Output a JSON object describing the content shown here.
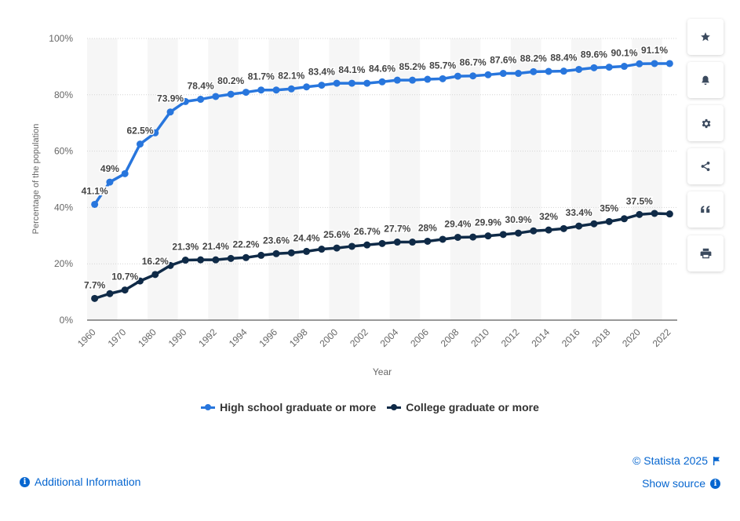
{
  "chart_data": {
    "type": "line",
    "xlabel": "Year",
    "ylabel": "Percentage of the population",
    "ylim": [
      0,
      100
    ],
    "yticks": [
      "0%",
      "20%",
      "40%",
      "60%",
      "80%",
      "100%"
    ],
    "xticks": [
      "1960",
      "1970",
      "1980",
      "1990",
      "1992",
      "1994",
      "1996",
      "1998",
      "2000",
      "2002",
      "2004",
      "2006",
      "2008",
      "2010",
      "2012",
      "2014",
      "2016",
      "2018",
      "2020",
      "2022"
    ],
    "x": [
      "1960",
      "1965",
      "1970",
      "1975",
      "1980",
      "1985",
      "1990",
      "1991",
      "1992",
      "1993",
      "1994",
      "1995",
      "1996",
      "1997",
      "1998",
      "1999",
      "2000",
      "2001",
      "2002",
      "2003",
      "2004",
      "2005",
      "2006",
      "2007",
      "2008",
      "2009",
      "2010",
      "2011",
      "2012",
      "2013",
      "2014",
      "2015",
      "2016",
      "2017",
      "2018",
      "2019",
      "2020",
      "2021",
      "2022"
    ],
    "series": [
      {
        "name": "High school graduate or more",
        "color": "#2876dd",
        "values": [
          41.1,
          49,
          52,
          62.5,
          66.5,
          73.9,
          77.6,
          78.4,
          79.4,
          80.2,
          80.9,
          81.7,
          81.7,
          82.1,
          82.8,
          83.4,
          84.1,
          84.1,
          84.1,
          84.6,
          85.2,
          85.2,
          85.5,
          85.7,
          86.6,
          86.7,
          87.1,
          87.6,
          87.6,
          88.2,
          88.3,
          88.4,
          89,
          89.6,
          89.8,
          90.1,
          91,
          91.1,
          91.1
        ],
        "labels": {
          "1960": "41.1%",
          "1965": "49%",
          "1975": "62.5%",
          "1985": "73.9%",
          "1991": "78.4%",
          "1993": "80.2%",
          "1995": "81.7%",
          "1997": "82.1%",
          "1999": "83.4%",
          "2001": "84.1%",
          "2003": "84.6%",
          "2005": "85.2%",
          "2007": "85.7%",
          "2009": "86.7%",
          "2011": "87.6%",
          "2013": "88.2%",
          "2015": "88.4%",
          "2017": "89.6%",
          "2019": "90.1%",
          "2021": "91.1%"
        }
      },
      {
        "name": "College graduate or more",
        "color": "#0f2a47",
        "values": [
          7.7,
          9.4,
          10.7,
          13.9,
          16.2,
          19.4,
          21.3,
          21.4,
          21.4,
          21.9,
          22.2,
          23,
          23.6,
          23.9,
          24.4,
          25.2,
          25.6,
          26.2,
          26.7,
          27.2,
          27.7,
          27.7,
          28,
          28.7,
          29.4,
          29.5,
          29.9,
          30.4,
          30.9,
          31.7,
          32,
          32.5,
          33.4,
          34.2,
          35,
          36,
          37.5,
          37.9,
          37.7
        ],
        "labels": {
          "1960": "7.7%",
          "1970": "10.7%",
          "1980": "16.2%",
          "1990": "21.3%",
          "1992": "21.4%",
          "1994": "22.2%",
          "1996": "23.6%",
          "1998": "24.4%",
          "2000": "25.6%",
          "2002": "26.7%",
          "2004": "27.7%",
          "2006": "28%",
          "2008": "29.4%",
          "2010": "29.9%",
          "2012": "30.9%",
          "2014": "32%",
          "2016": "33.4%",
          "2018": "35%",
          "2020": "37.5%"
        }
      }
    ],
    "grid": true,
    "legend_position": "bottom"
  },
  "toolbar": {
    "buttons": [
      {
        "name": "favorite-button",
        "icon": "star-icon"
      },
      {
        "name": "notification-button",
        "icon": "bell-icon"
      },
      {
        "name": "settings-button",
        "icon": "gear-icon"
      },
      {
        "name": "share-button",
        "icon": "share-icon"
      },
      {
        "name": "cite-button",
        "icon": "quote-icon"
      },
      {
        "name": "print-button",
        "icon": "print-icon"
      }
    ]
  },
  "footer": {
    "copyright": "© Statista 2025",
    "show_source": "Show source",
    "additional_info": "Additional Information"
  }
}
